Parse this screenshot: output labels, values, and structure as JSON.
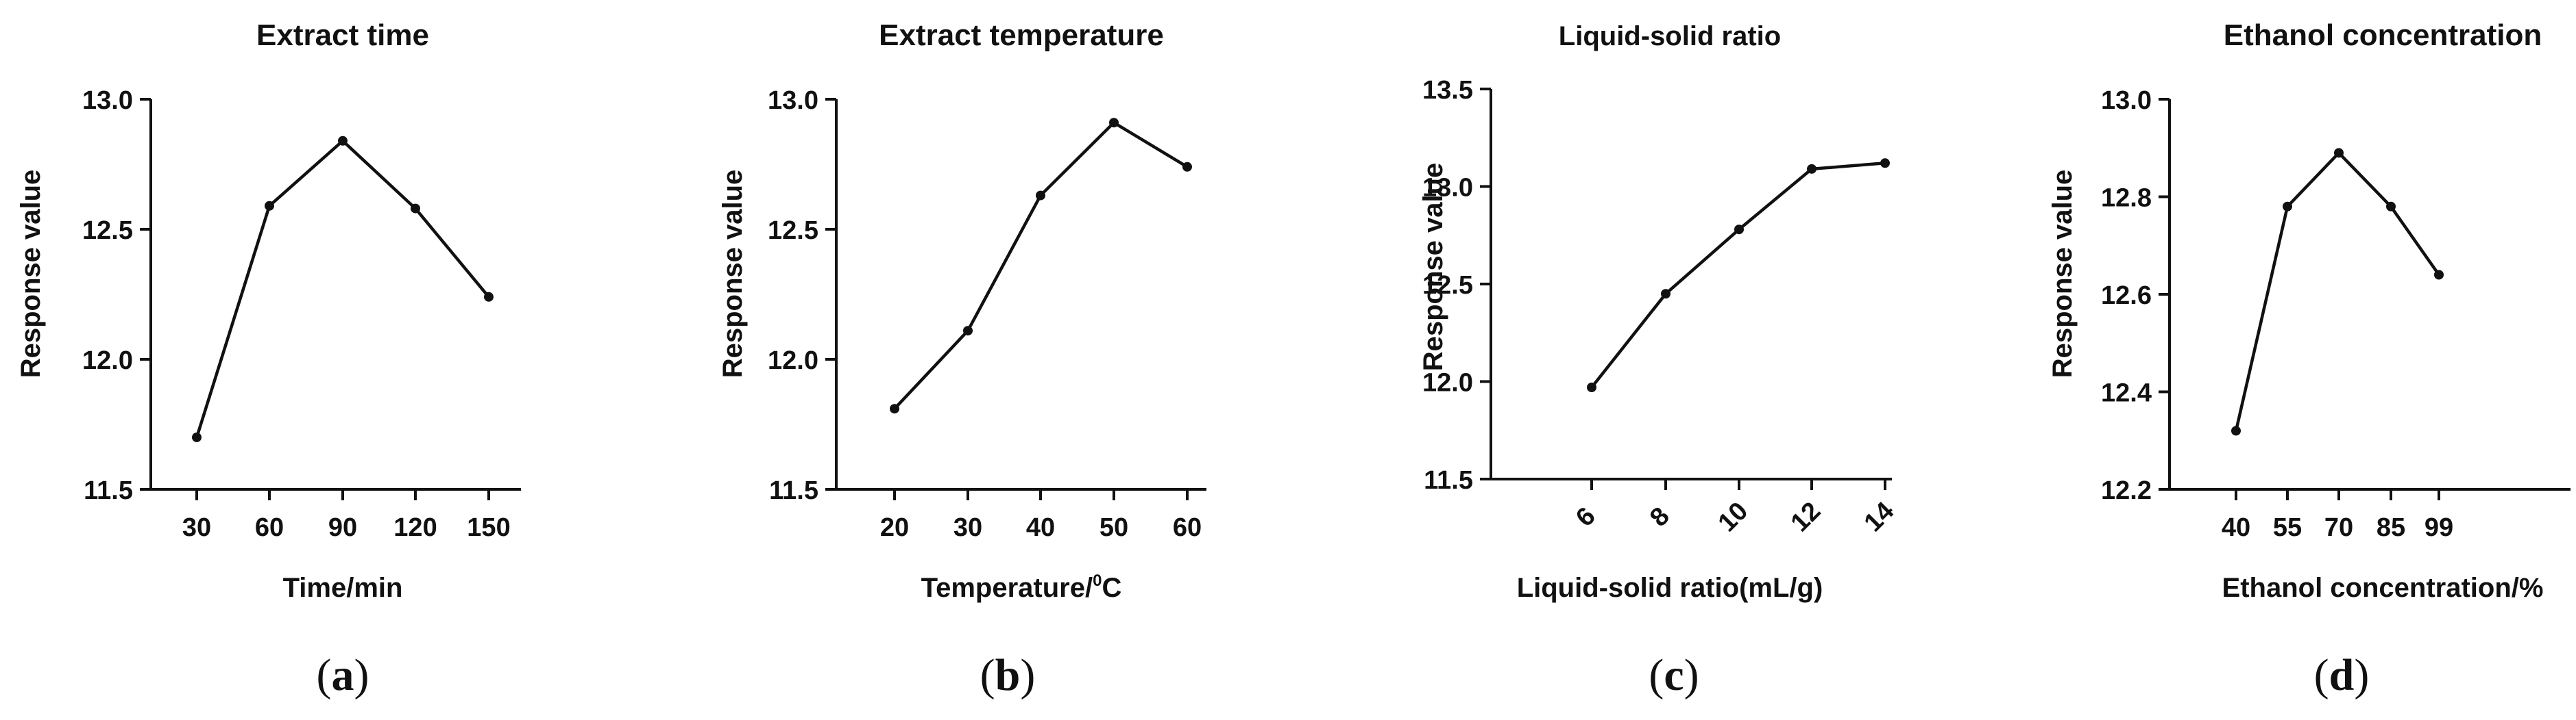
{
  "chart_data": [
    {
      "type": "line",
      "panel": "a",
      "title": "Extract time",
      "xlabel": "Time/min",
      "ylabel": "Response value",
      "categories": [
        "30",
        "60",
        "90",
        "120",
        "150"
      ],
      "x": [
        30,
        60,
        90,
        120,
        150
      ],
      "values": [
        11.7,
        12.59,
        12.84,
        12.58,
        12.24
      ],
      "ylim": [
        11.5,
        13.0
      ],
      "yticks": [
        "11.5",
        "12.0",
        "12.5",
        "13.0"
      ],
      "caption": {
        "open": "(",
        "letter": "a",
        "close": ")"
      }
    },
    {
      "type": "line",
      "panel": "b",
      "title": "Extract temperature",
      "xlabel": "Temperature/",
      "xlabel_degree": "0",
      "xlabel_unit": "C",
      "ylabel": "Response value",
      "categories": [
        "20",
        "30",
        "40",
        "50",
        "60"
      ],
      "x": [
        20,
        30,
        40,
        50,
        60
      ],
      "values": [
        11.81,
        12.11,
        12.63,
        12.91,
        12.74
      ],
      "ylim": [
        11.5,
        13.0
      ],
      "yticks": [
        "11.5",
        "12.0",
        "12.5",
        "13.0"
      ],
      "caption": {
        "open": "(",
        "letter": "b",
        "close": ")"
      }
    },
    {
      "type": "line",
      "panel": "c",
      "title": "Liquid-solid ratio",
      "xlabel": "Liquid-solid ratio(mL/g)",
      "ylabel": "Response value",
      "categories": [
        "6",
        "8",
        "10",
        "12",
        "14"
      ],
      "x": [
        6,
        8,
        10,
        12,
        14
      ],
      "values": [
        11.97,
        12.45,
        12.78,
        13.09,
        13.12
      ],
      "ylim": [
        11.5,
        13.5
      ],
      "yticks": [
        "11.5",
        "12.0",
        "12.5",
        "13.0",
        "13.5"
      ],
      "xtick_rotation": "slanted",
      "caption": {
        "open": "(",
        "letter": "c",
        "close": ")"
      }
    },
    {
      "type": "line",
      "panel": "d",
      "title": "Ethanol concentration",
      "xlabel": "Ethanol concentration/%",
      "ylabel": "Response value",
      "categories": [
        "40",
        "55",
        "70",
        "85",
        "99"
      ],
      "x": [
        40,
        55,
        70,
        85,
        99
      ],
      "values": [
        12.32,
        12.78,
        12.89,
        12.78,
        12.64
      ],
      "ylim": [
        12.2,
        13.0
      ],
      "yticks": [
        "12.2",
        "12.4",
        "12.6",
        "12.8",
        "13.0"
      ],
      "caption": {
        "open": "(",
        "letter": "d",
        "close": ")"
      }
    }
  ]
}
